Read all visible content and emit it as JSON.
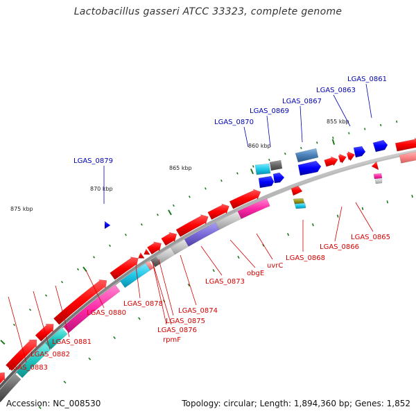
{
  "title": "Lactobacillus gasseri ATCC 33323, complete genome",
  "accession": "Accession: NC_008530",
  "summary": "Topology: circular; Length: 1,894,360 bp; Genes: 1,852",
  "kbp_labels": [
    {
      "text": "875 kbp"
    },
    {
      "text": "870 kbp"
    },
    {
      "text": "865 kbp"
    },
    {
      "text": "860 kbp"
    },
    {
      "text": "855 kbp"
    }
  ],
  "labels_blue": [
    {
      "text": "LGAS_0879"
    },
    {
      "text": "LGAS_0870"
    },
    {
      "text": "LGAS_0869"
    },
    {
      "text": "LGAS_0867"
    },
    {
      "text": "LGAS_0863"
    },
    {
      "text": "LGAS_0861"
    }
  ],
  "labels_red": [
    {
      "text": "LGAS_0883"
    },
    {
      "text": "LGAS_0882"
    },
    {
      "text": "LGAS_0881"
    },
    {
      "text": "LGAS_0880"
    },
    {
      "text": "LGAS_0878"
    },
    {
      "text": "LGAS_0876"
    },
    {
      "text": "rpmF"
    },
    {
      "text": "LGAS_0875"
    },
    {
      "text": "LGAS_0874"
    },
    {
      "text": "LGAS_0873"
    },
    {
      "text": "obgE"
    },
    {
      "text": "uvrC"
    },
    {
      "text": "LGAS_0868"
    },
    {
      "text": "LGAS_0866"
    },
    {
      "text": "LGAS_0865"
    }
  ],
  "colors": {
    "forward_gene": "#ff0000",
    "reverse_gene": "#0000ff",
    "backbone": "#888888",
    "label_red": "#d40000",
    "label_blue": "#0000b0",
    "tick": "#1a7a1a"
  }
}
